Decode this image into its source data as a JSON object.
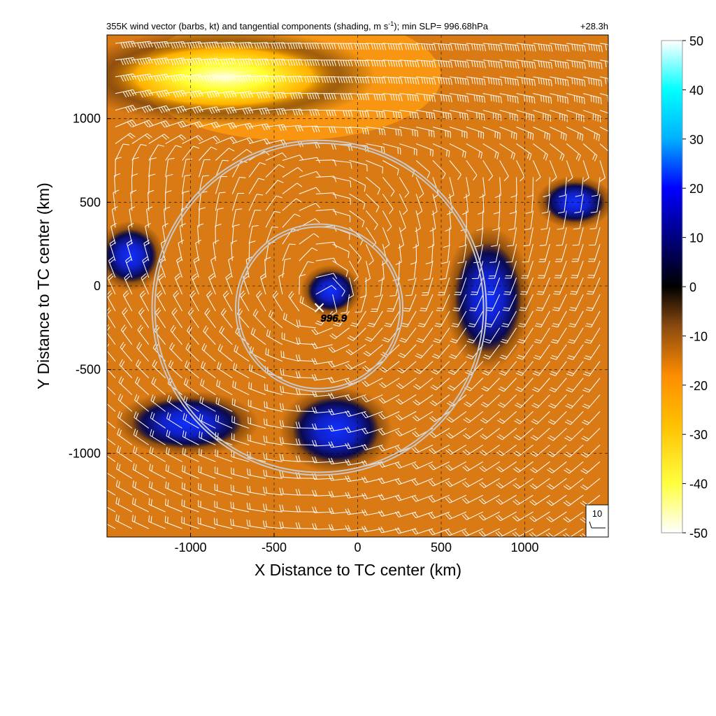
{
  "chart_data": {
    "type": "heatmap",
    "title": "355K wind vector (barbs, kt) and tangential components (shading, m s",
    "title_superscript": "-1",
    "title_suffix": "); min SLP= 996.68hPa",
    "forecast_time": "+28.3h",
    "xlabel": "X Distance to TC center (km)",
    "ylabel": "Y Distance to TC center (km)",
    "xlim": [
      -1500,
      1500
    ],
    "ylim": [
      -1500,
      1500
    ],
    "x_ticks": [
      -1000,
      -500,
      0,
      500,
      1000
    ],
    "y_ticks": [
      1000,
      500,
      0,
      -500,
      -1000
    ],
    "x_tick_labels": [
      "-1000",
      "-500",
      "0",
      "500",
      "1000"
    ],
    "y_tick_labels": [
      "1000",
      "500",
      "0",
      "-500",
      "-1000"
    ],
    "grid": "dashed",
    "colorbar": {
      "range": [
        -50,
        50
      ],
      "ticks": [
        50,
        40,
        30,
        20,
        10,
        0,
        -10,
        -20,
        -30,
        -40,
        -50
      ],
      "tick_labels": [
        "50",
        "40",
        "30",
        "20",
        "10",
        "0",
        "-10",
        "-20",
        "-30",
        "-40",
        "-50"
      ],
      "colors": [
        "#ffffff",
        "#ffff00",
        "#ff8c00",
        "#000000",
        "#0000ff",
        "#00ffff",
        "#ffffff"
      ]
    },
    "center_marker": {
      "x": -230,
      "y": -130,
      "label": "996.9"
    },
    "range_rings": [
      {
        "center_x": -230,
        "center_y": -130,
        "radius_km": 500
      },
      {
        "center_x": -230,
        "center_y": -130,
        "radius_km": 1000
      }
    ],
    "reference_barb": {
      "label": "10",
      "speed_kt": 10
    },
    "field_features": [
      {
        "kind": "positive",
        "x": -160,
        "y": -30,
        "rx": 140,
        "ry": 120,
        "value": 20
      },
      {
        "kind": "positive",
        "x": -130,
        "y": -860,
        "rx": 260,
        "ry": 200,
        "value": 15
      },
      {
        "kind": "positive",
        "x": 780,
        "y": -70,
        "rx": 200,
        "ry": 330,
        "value": 12
      },
      {
        "kind": "positive",
        "x": -1020,
        "y": -820,
        "rx": 330,
        "ry": 150,
        "value": 8
      },
      {
        "kind": "positive",
        "x": -1360,
        "y": 180,
        "rx": 160,
        "ry": 160,
        "value": 5
      },
      {
        "kind": "positive",
        "x": 1300,
        "y": 500,
        "rx": 180,
        "ry": 120,
        "value": 2
      },
      {
        "kind": "negative",
        "x": -800,
        "y": 1250,
        "rx": 700,
        "ry": 220,
        "value": -42
      }
    ]
  }
}
